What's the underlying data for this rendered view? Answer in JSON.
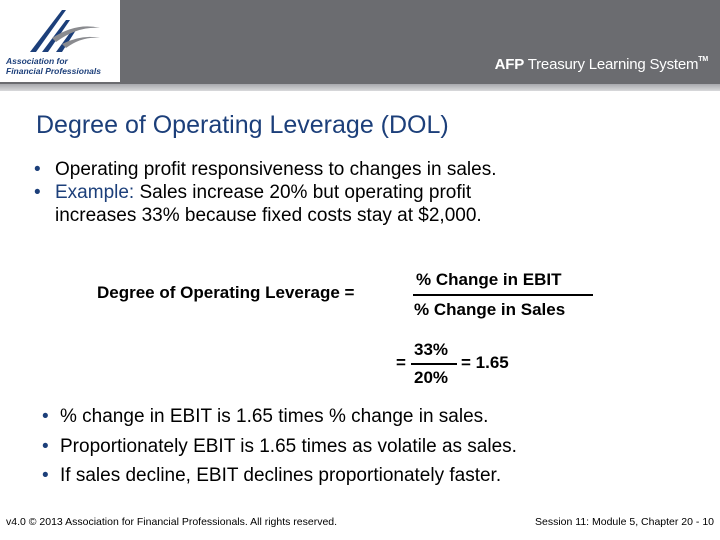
{
  "header": {
    "logo_text_line1": "Association for",
    "logo_text_line2": "Financial Professionals",
    "brand_prefix": "AFP",
    "brand_name": " Treasury Learning System",
    "brand_tm": "TM"
  },
  "slide": {
    "title": "Degree of Operating Leverage (DOL)",
    "bullets_top": [
      {
        "text": "Operating profit responsiveness to changes in sales."
      },
      {
        "label": "Example:",
        "text": " Sales increase 20% but operating profit",
        "text_line2": "increases 33% because fixed costs stay at $2,000."
      }
    ],
    "formula": {
      "lhs": "Degree of Operating Leverage =",
      "numerator": "% Change in EBIT",
      "denominator": "% Change in Sales",
      "eq2_sign": "=",
      "eq2_numerator": "33%",
      "eq2_denominator": "20%",
      "eq2_result": "= 1.65"
    },
    "bullets_bottom": [
      "% change in EBIT is 1.65 times % change in sales.",
      "Proportionately EBIT is 1.65 times as volatile as sales.",
      "If sales decline, EBIT declines proportionately faster."
    ]
  },
  "footer": {
    "left": "v4.0 © 2013 Association for Financial Professionals. All rights reserved.",
    "right": "Session 11: Module 5, Chapter 20 - 10"
  },
  "colors": {
    "header_bg": "#6b6c70",
    "accent_blue": "#1c3f7a"
  }
}
